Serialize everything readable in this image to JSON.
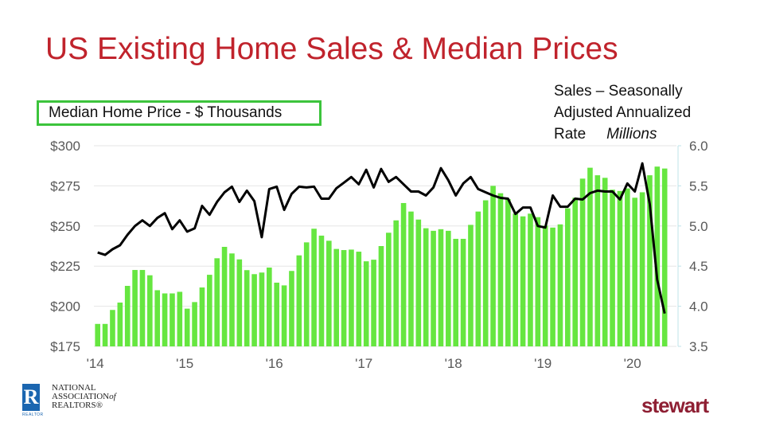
{
  "title": "US Existing Home Sales & Median Prices",
  "legend_label": "Median Home Price - $ Thousands",
  "right_label": {
    "line1": "Sales – Seasonally",
    "line2": "Adjusted Annualized",
    "line3": "Rate",
    "units": "Millions"
  },
  "logos": {
    "nar": {
      "mark": "R",
      "sub": "REALTOR",
      "line1": "NATIONAL",
      "line2": "ASSOCIATION",
      "of": "of",
      "line3": "REALTORS®"
    },
    "stewart": "stewart"
  },
  "colors": {
    "title": "#c0232c",
    "bars": "#66e640",
    "line": "#000000",
    "legend_border": "#3cc43c"
  },
  "chart_data": {
    "type": "bar+line",
    "title": "US Existing Home Sales & Median Prices",
    "x_range": [
      "2014-01",
      "2020-05"
    ],
    "x_tick_labels": [
      "'14",
      "'15",
      "'16",
      "'17",
      "'18",
      "'19",
      "'20"
    ],
    "left_axis": {
      "label": "Median Home Price - $ Thousands",
      "ylim": [
        175,
        300
      ],
      "ticks": [
        "$175",
        "$200",
        "$225",
        "$250",
        "$275",
        "$300"
      ]
    },
    "right_axis": {
      "label": "Sales – Seasonally Adjusted Annualized Rate Millions",
      "ylim": [
        3.5,
        6.0
      ],
      "ticks": [
        "3.5",
        "4.0",
        "4.5",
        "5.0",
        "5.5",
        "6.0"
      ]
    },
    "grid": true,
    "series": [
      {
        "name": "Median Home Price - $ Thousands",
        "type": "bar",
        "axis": "left",
        "values": [
          189,
          189,
          197.7,
          202.3,
          212.7,
          222.6,
          222.6,
          219.3,
          210,
          208,
          208,
          209,
          198.5,
          202.6,
          211.7,
          219.6,
          229.9,
          237,
          232.9,
          229.2,
          222.5,
          220,
          221,
          224.1,
          214.7,
          213,
          222,
          231.7,
          239.8,
          248.3,
          244,
          240.8,
          235.7,
          235,
          235.3,
          234,
          228,
          229,
          237.5,
          245.8,
          253.5,
          264.3,
          259,
          254,
          248.6,
          247,
          248,
          247,
          242,
          242,
          250.7,
          259,
          266,
          275,
          270.4,
          266.8,
          257.7,
          256,
          257.7,
          255.5,
          250.2,
          249,
          251,
          261,
          267.6,
          279.5,
          286.3,
          281.6,
          280,
          272.6,
          271.8,
          273.4,
          267.6,
          271,
          281.6,
          287,
          285.8
        ]
      },
      {
        "name": "Sales – Seasonally Adjusted Annualized Rate",
        "type": "line",
        "axis": "right",
        "values": [
          4.67,
          4.64,
          4.71,
          4.76,
          4.89,
          5.0,
          5.07,
          5.0,
          5.1,
          5.16,
          4.96,
          5.07,
          4.93,
          4.97,
          5.25,
          5.14,
          5.3,
          5.42,
          5.49,
          5.3,
          5.44,
          5.31,
          4.86,
          5.46,
          5.49,
          5.2,
          5.4,
          5.49,
          5.48,
          5.49,
          5.34,
          5.34,
          5.47,
          5.54,
          5.61,
          5.52,
          5.7,
          5.48,
          5.71,
          5.55,
          5.61,
          5.52,
          5.43,
          5.43,
          5.38,
          5.48,
          5.72,
          5.57,
          5.38,
          5.53,
          5.61,
          5.46,
          5.42,
          5.38,
          5.35,
          5.34,
          5.15,
          5.23,
          5.23,
          5.0,
          4.98,
          5.38,
          5.24,
          5.24,
          5.34,
          5.33,
          5.41,
          5.44,
          5.43,
          5.43,
          5.33,
          5.53,
          5.43,
          5.78,
          5.27,
          4.33,
          3.91
        ]
      }
    ]
  }
}
